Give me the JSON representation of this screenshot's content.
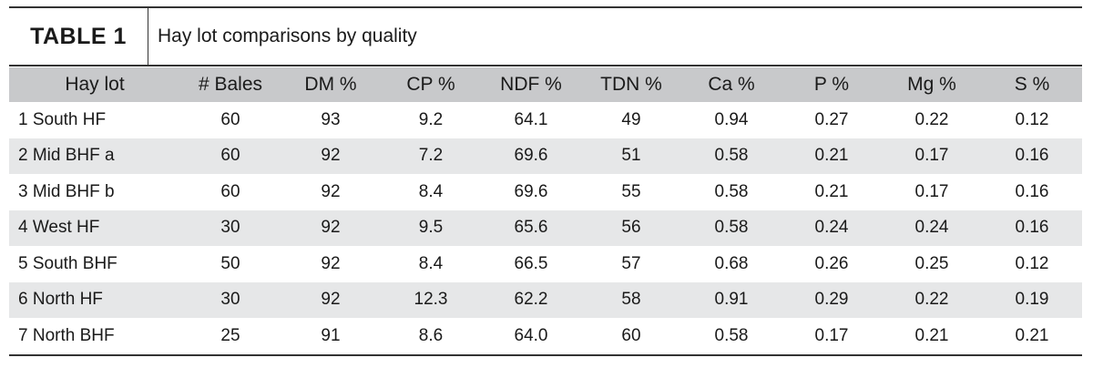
{
  "header": {
    "label": "TABLE 1",
    "title": "Hay lot comparisons by quality"
  },
  "table": {
    "columns": [
      "Hay lot",
      "# Bales",
      "DM %",
      "CP %",
      "NDF %",
      "TDN %",
      "Ca %",
      "P %",
      "Mg %",
      "S %"
    ],
    "rows": [
      [
        "1 South HF",
        "60",
        "93",
        "9.2",
        "64.1",
        "49",
        "0.94",
        "0.27",
        "0.22",
        "0.12"
      ],
      [
        "2 Mid BHF a",
        "60",
        "92",
        "7.2",
        "69.6",
        "51",
        "0.58",
        "0.21",
        "0.17",
        "0.16"
      ],
      [
        "3 Mid BHF b",
        "60",
        "92",
        "8.4",
        "69.6",
        "55",
        "0.58",
        "0.21",
        "0.17",
        "0.16"
      ],
      [
        "4 West HF",
        "30",
        "92",
        "9.5",
        "65.6",
        "56",
        "0.58",
        "0.24",
        "0.24",
        "0.16"
      ],
      [
        "5 South BHF",
        "50",
        "92",
        "8.4",
        "66.5",
        "57",
        "0.68",
        "0.26",
        "0.25",
        "0.12"
      ],
      [
        "6 North HF",
        "30",
        "92",
        "12.3",
        "62.2",
        "58",
        "0.91",
        "0.29",
        "0.22",
        "0.19"
      ],
      [
        "7 North BHF",
        "25",
        "91",
        "8.6",
        "64.0",
        "60",
        "0.58",
        "0.17",
        "0.21",
        "0.21"
      ]
    ]
  }
}
